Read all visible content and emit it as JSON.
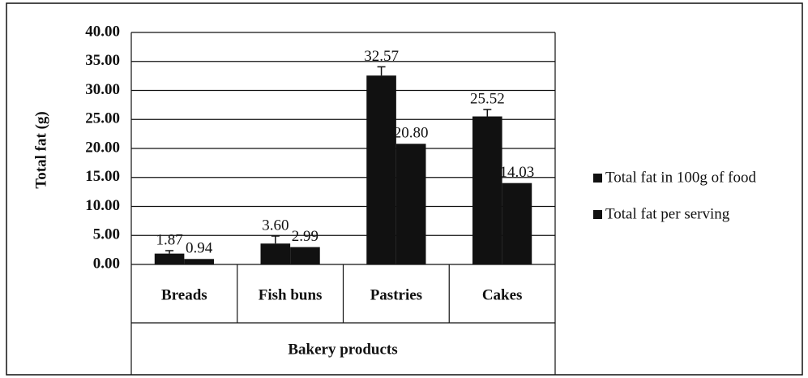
{
  "chart_data": {
    "type": "bar",
    "x_label": "Bakery products",
    "y_label": "Total fat (g)",
    "categories": [
      "Breads",
      "Fish buns",
      "Pastries",
      "Cakes"
    ],
    "series": [
      {
        "name": "Total fat in 100g of food",
        "color": "#111111",
        "values": [
          1.87,
          3.6,
          32.57,
          25.52
        ],
        "value_labels": [
          "1.87",
          "3.60",
          "32.57",
          "25.52"
        ],
        "errors": [
          0.5,
          1.3,
          1.5,
          1.2
        ]
      },
      {
        "name": "Total fat per serving",
        "color": "#111111",
        "values": [
          0.94,
          2.99,
          20.8,
          14.03
        ],
        "value_labels": [
          "0.94",
          "2.99",
          "20.80",
          "14.03"
        ]
      }
    ],
    "ylim": [
      0,
      40
    ],
    "yticks": [
      {
        "value": 0,
        "label": "0.00"
      },
      {
        "value": 5,
        "label": "5.00"
      },
      {
        "value": 10,
        "label": "10.00"
      },
      {
        "value": 15,
        "label": "15.00"
      },
      {
        "value": 20,
        "label": "20.00"
      },
      {
        "value": 25,
        "label": "25.00"
      },
      {
        "value": 30,
        "label": "30.00"
      },
      {
        "value": 35,
        "label": "35.00"
      },
      {
        "value": 40,
        "label": "40.00"
      }
    ],
    "grid": true,
    "legend": "right"
  }
}
